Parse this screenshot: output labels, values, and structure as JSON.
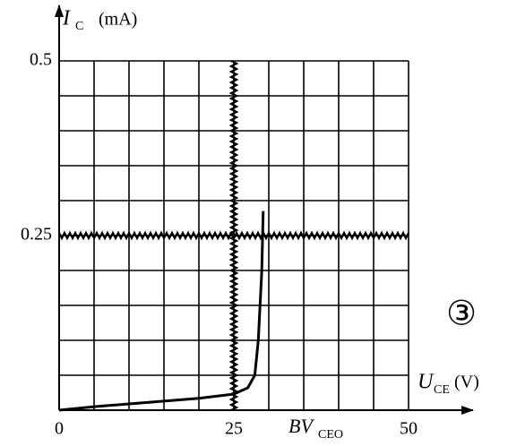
{
  "chart_data": {
    "type": "line",
    "y_label": {
      "symbol": "I",
      "subscript": "C",
      "unit": "(mA)"
    },
    "x_label": {
      "symbol": "U",
      "subscript": "CE",
      "unit": "(V)"
    },
    "annotations": [
      {
        "text": "BV",
        "subscript": "CEO"
      },
      {
        "text": "③"
      }
    ],
    "x": [
      0,
      5,
      10,
      15,
      20,
      25,
      27,
      28,
      28.5,
      29,
      29.2
    ],
    "series": [
      {
        "color": "#000000",
        "values": [
          0,
          0.005,
          0.009,
          0.013,
          0.017,
          0.023,
          0.032,
          0.05,
          0.1,
          0.2,
          0.285
        ]
      }
    ],
    "xlim": [
      0,
      50
    ],
    "ylim": [
      0,
      0.5
    ],
    "xticks": [
      0,
      25,
      50
    ],
    "yticks": [
      0.25,
      0.5
    ],
    "grid": true,
    "reference_lines": {
      "x": 25,
      "y": 0.25
    }
  }
}
